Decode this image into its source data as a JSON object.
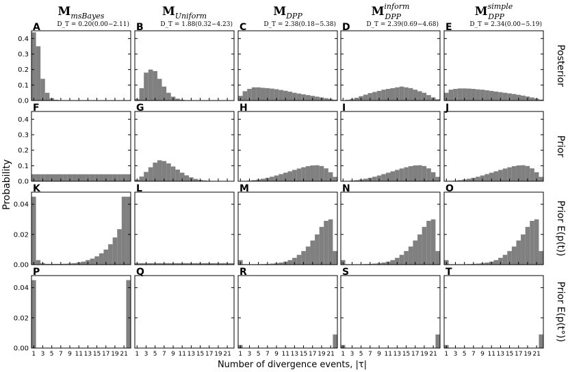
{
  "chart_data": {
    "type": "bar",
    "layout": "4x5 grid of histograms",
    "xlabel": "Number of divergence events, |τ|",
    "ylabel": "Probability",
    "x": [
      1,
      2,
      3,
      4,
      5,
      6,
      7,
      8,
      9,
      10,
      11,
      12,
      13,
      14,
      15,
      16,
      17,
      18,
      19,
      20,
      21,
      22
    ],
    "xticks": [
      "1",
      "3",
      "5",
      "7",
      "9",
      "11",
      "13",
      "15",
      "17",
      "19",
      "21"
    ],
    "columns": [
      {
        "model": "M",
        "sub": "msBayes",
        "sup": "",
        "stat": "D_T = 0.20(0.00−2.11)"
      },
      {
        "model": "M",
        "sub": "Uniform",
        "sup": "",
        "stat": "D_T = 1.88(0.32−4.23)"
      },
      {
        "model": "M",
        "sub": "DPP",
        "sup": "",
        "stat": "D_T = 2.38(0.18−5.38)"
      },
      {
        "model": "M",
        "sub": "DPP",
        "sup": "inform",
        "stat": "D_T = 2.39(0.69−4.68)"
      },
      {
        "model": "M",
        "sub": "DPP",
        "sup": "simple",
        "stat": "D_T = 2.34(0.00−5.19)"
      }
    ],
    "rows": [
      {
        "label": "Posterior",
        "ylim": [
          0,
          0.45
        ],
        "yticks": [
          "0.0",
          "0.1",
          "0.2",
          "0.3",
          "0.4"
        ],
        "panel_letters": [
          "A",
          "B",
          "C",
          "D",
          "E"
        ],
        "series": [
          [
            0.44,
            0.35,
            0.14,
            0.05,
            0.015,
            0.005,
            0.002,
            0.001,
            0,
            0,
            0,
            0,
            0,
            0,
            0,
            0,
            0,
            0,
            0,
            0,
            0,
            0
          ],
          [
            0.01,
            0.08,
            0.18,
            0.2,
            0.19,
            0.14,
            0.09,
            0.05,
            0.025,
            0.012,
            0.005,
            0.002,
            0.001,
            0,
            0,
            0,
            0,
            0,
            0,
            0,
            0,
            0
          ],
          [
            0.03,
            0.06,
            0.075,
            0.085,
            0.085,
            0.082,
            0.08,
            0.077,
            0.073,
            0.068,
            0.063,
            0.057,
            0.05,
            0.045,
            0.04,
            0.035,
            0.03,
            0.025,
            0.02,
            0.015,
            0.01,
            0.005
          ],
          [
            0.002,
            0.005,
            0.01,
            0.018,
            0.028,
            0.038,
            0.048,
            0.055,
            0.062,
            0.07,
            0.075,
            0.08,
            0.085,
            0.09,
            0.085,
            0.08,
            0.07,
            0.06,
            0.05,
            0.035,
            0.02,
            0.008
          ],
          [
            0.05,
            0.07,
            0.075,
            0.078,
            0.078,
            0.077,
            0.075,
            0.072,
            0.07,
            0.066,
            0.062,
            0.058,
            0.054,
            0.05,
            0.046,
            0.042,
            0.037,
            0.032,
            0.026,
            0.02,
            0.013,
            0.006
          ]
        ]
      },
      {
        "label": "Prior",
        "ylim": [
          0,
          0.45
        ],
        "yticks": [
          "0.0",
          "0.1",
          "0.2",
          "0.3",
          "0.4"
        ],
        "panel_letters": [
          "F",
          "G",
          "H",
          "I",
          "J"
        ],
        "series": [
          [
            0.045,
            0.045,
            0.045,
            0.045,
            0.045,
            0.045,
            0.045,
            0.045,
            0.045,
            0.045,
            0.045,
            0.045,
            0.045,
            0.045,
            0.045,
            0.045,
            0.045,
            0.045,
            0.045,
            0.045,
            0.045,
            0.045
          ],
          [
            0.01,
            0.03,
            0.06,
            0.09,
            0.12,
            0.135,
            0.13,
            0.115,
            0.095,
            0.075,
            0.055,
            0.038,
            0.025,
            0.015,
            0.009,
            0.005,
            0.003,
            0.002,
            0.001,
            0,
            0,
            0
          ],
          [
            0.001,
            0.002,
            0.004,
            0.007,
            0.011,
            0.016,
            0.022,
            0.029,
            0.037,
            0.046,
            0.055,
            0.064,
            0.073,
            0.082,
            0.09,
            0.097,
            0.102,
            0.103,
            0.098,
            0.083,
            0.058,
            0.028
          ],
          [
            0.001,
            0.002,
            0.004,
            0.007,
            0.011,
            0.016,
            0.022,
            0.029,
            0.037,
            0.046,
            0.055,
            0.064,
            0.073,
            0.082,
            0.09,
            0.097,
            0.102,
            0.103,
            0.098,
            0.083,
            0.058,
            0.028
          ],
          [
            0.001,
            0.002,
            0.004,
            0.007,
            0.011,
            0.016,
            0.022,
            0.029,
            0.037,
            0.046,
            0.055,
            0.064,
            0.073,
            0.082,
            0.09,
            0.097,
            0.102,
            0.103,
            0.098,
            0.083,
            0.058,
            0.028
          ]
        ]
      },
      {
        "label": "Prior E(p(t))",
        "ylim": [
          0,
          0.048
        ],
        "yticks": [
          "0.00",
          "0.02",
          "0.04"
        ],
        "panel_letters": [
          "K",
          "L",
          "M",
          "N",
          "O"
        ],
        "series": [
          [
            0.045,
            0.003,
            0.001,
            0.0005,
            0.0005,
            0.0005,
            0.0005,
            0.0006,
            0.0008,
            0.001,
            0.0015,
            0.002,
            0.003,
            0.004,
            0.0055,
            0.0075,
            0.01,
            0.0135,
            0.018,
            0.0235,
            0.045,
            0.045
          ],
          [
            0.001,
            0.001,
            0.001,
            0.001,
            0.001,
            0.001,
            0.001,
            0.001,
            0.001,
            0.001,
            0.001,
            0.001,
            0.001,
            0.001,
            0.001,
            0.001,
            0.001,
            0.001,
            0.001,
            0.001,
            0.001,
            0.001
          ],
          [
            0.003,
            0.0003,
            0.0003,
            0.0003,
            0.0003,
            0.0004,
            0.0005,
            0.0007,
            0.001,
            0.0014,
            0.002,
            0.003,
            0.0045,
            0.0065,
            0.009,
            0.012,
            0.016,
            0.02,
            0.025,
            0.029,
            0.03,
            0.009
          ],
          [
            0.003,
            0.0003,
            0.0003,
            0.0003,
            0.0003,
            0.0004,
            0.0005,
            0.0007,
            0.001,
            0.0014,
            0.002,
            0.003,
            0.0045,
            0.0065,
            0.009,
            0.012,
            0.016,
            0.02,
            0.025,
            0.029,
            0.03,
            0.009
          ],
          [
            0.003,
            0.0003,
            0.0003,
            0.0003,
            0.0003,
            0.0004,
            0.0005,
            0.0007,
            0.001,
            0.0014,
            0.002,
            0.003,
            0.0045,
            0.0065,
            0.009,
            0.012,
            0.016,
            0.02,
            0.025,
            0.029,
            0.03,
            0.009
          ]
        ]
      },
      {
        "label": "Prior E(p(t°))",
        "ylim": [
          0,
          0.048
        ],
        "yticks": [
          "0.00",
          "0.02",
          "0.04"
        ],
        "panel_letters": [
          "P",
          "Q",
          "R",
          "S",
          "T"
        ],
        "series": [
          [
            0.045,
            0,
            0,
            0,
            0,
            0,
            0,
            0,
            0,
            0,
            0,
            0,
            0,
            0,
            0,
            0,
            0,
            0,
            0,
            0,
            0,
            0.045
          ],
          [
            0,
            0,
            0,
            0,
            0,
            0,
            0,
            0,
            0,
            0,
            0,
            0,
            0,
            0,
            0,
            0,
            0,
            0,
            0,
            0,
            0,
            0.0002
          ],
          [
            0.002,
            0,
            0,
            0,
            0,
            0,
            0,
            0,
            0,
            0,
            0,
            0,
            0,
            0,
            0,
            0,
            0,
            0,
            0,
            0,
            0,
            0.009
          ],
          [
            0.002,
            0,
            0,
            0,
            0,
            0,
            0,
            0,
            0,
            0,
            0,
            0,
            0,
            0,
            0,
            0,
            0,
            0,
            0,
            0,
            0,
            0.009
          ],
          [
            0.002,
            0,
            0,
            0,
            0,
            0,
            0,
            0,
            0,
            0,
            0,
            0,
            0,
            0,
            0,
            0,
            0,
            0,
            0,
            0,
            0,
            0.009
          ]
        ]
      }
    ],
    "bar_color": "#808080"
  }
}
